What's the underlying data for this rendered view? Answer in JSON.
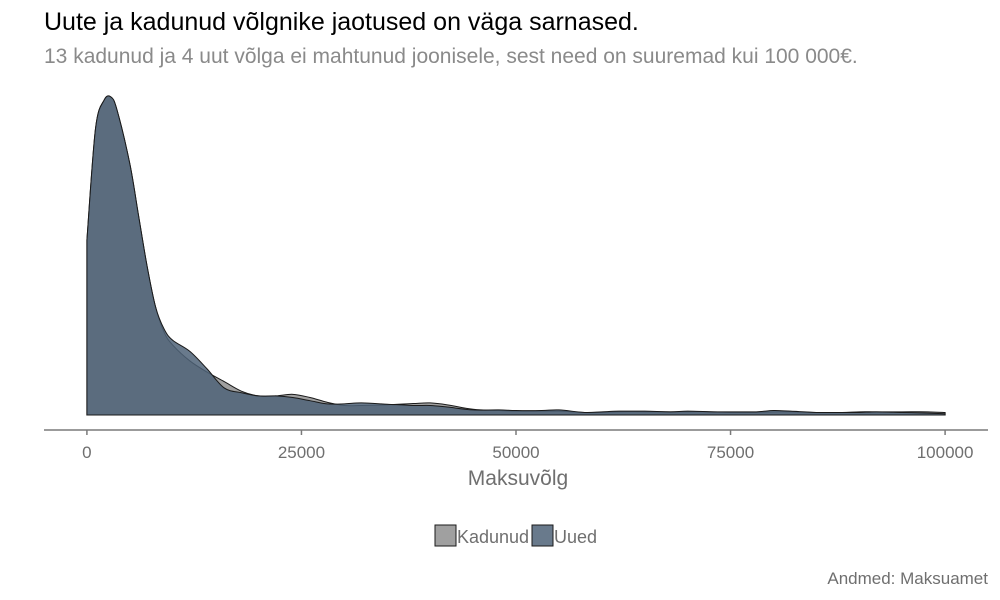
{
  "title": "Uute ja kadunud võlgnike jaotused on väga sarnased.",
  "subtitle": "13 kadunud ja 4 uut võlga ei mahtunud joonisele, sest need on suuremad kui 100 000€.",
  "caption": "Andmed: Maksuamet",
  "colors": {
    "Kadunud": "#8f8f8f",
    "Uued": "#4f6378",
    "axis": "#7a7a7a",
    "text_muted": "#6f6f6f"
  },
  "chart_data": {
    "type": "area",
    "subtype": "density",
    "title": "Uute ja kadunud võlgnike jaotused on väga sarnased.",
    "subtitle": "13 kadunud ja 4 uut võlga ei mahtunud joonisele, sest need on suuremad kui 100 000€.",
    "xlabel": "Maksuvõlg",
    "ylabel": "",
    "xlim": [
      -5000,
      105000
    ],
    "ylim": [
      0,
      1
    ],
    "x_ticks": [
      0,
      25000,
      50000,
      75000,
      100000
    ],
    "x_tick_labels": [
      "0",
      "25000",
      "50000",
      "75000",
      "100000"
    ],
    "y_axis_visible": false,
    "grid": false,
    "legend_position": "bottom",
    "series": [
      {
        "name": "Kadunud",
        "x": [
          0,
          1000,
          2000,
          2800,
          3500,
          5000,
          6000,
          7000,
          8000,
          9000,
          10000,
          12000,
          14000,
          16000,
          18000,
          20000,
          22000,
          24000,
          26000,
          28000,
          30000,
          32000,
          35000,
          38000,
          40000,
          42000,
          45000,
          48000,
          50000,
          53000,
          55000,
          58000,
          60000,
          62000,
          65000,
          68000,
          70000,
          73000,
          75000,
          78000,
          80000,
          82000,
          85000,
          88000,
          90000,
          92000,
          95000,
          98000,
          100000
        ],
        "y": [
          0.55,
          0.9,
          0.99,
          1.0,
          0.96,
          0.79,
          0.63,
          0.47,
          0.34,
          0.26,
          0.22,
          0.17,
          0.135,
          0.105,
          0.075,
          0.06,
          0.06,
          0.065,
          0.055,
          0.04,
          0.03,
          0.03,
          0.032,
          0.036,
          0.038,
          0.032,
          0.018,
          0.014,
          0.012,
          0.012,
          0.012,
          0.008,
          0.008,
          0.01,
          0.01,
          0.01,
          0.01,
          0.01,
          0.008,
          0.008,
          0.01,
          0.01,
          0.008,
          0.008,
          0.01,
          0.01,
          0.01,
          0.01,
          0.008
        ]
      },
      {
        "name": "Uued",
        "x": [
          0,
          1000,
          2000,
          2800,
          3500,
          5000,
          6000,
          7000,
          8000,
          9000,
          10000,
          12000,
          14000,
          16000,
          18000,
          20000,
          22000,
          24000,
          26000,
          28000,
          30000,
          32000,
          35000,
          38000,
          40000,
          42000,
          45000,
          48000,
          50000,
          53000,
          55000,
          58000,
          60000,
          62000,
          65000,
          68000,
          70000,
          73000,
          75000,
          78000,
          80000,
          82000,
          85000,
          88000,
          90000,
          92000,
          95000,
          98000,
          100000
        ],
        "y": [
          0.55,
          0.9,
          0.99,
          1.0,
          0.96,
          0.79,
          0.63,
          0.47,
          0.34,
          0.27,
          0.235,
          0.2,
          0.145,
          0.085,
          0.07,
          0.06,
          0.06,
          0.055,
          0.045,
          0.035,
          0.035,
          0.038,
          0.034,
          0.03,
          0.03,
          0.025,
          0.016,
          0.016,
          0.014,
          0.014,
          0.016,
          0.008,
          0.01,
          0.012,
          0.012,
          0.01,
          0.012,
          0.01,
          0.01,
          0.01,
          0.014,
          0.012,
          0.008,
          0.008,
          0.008,
          0.01,
          0.008,
          0.006,
          0.004
        ]
      }
    ]
  }
}
